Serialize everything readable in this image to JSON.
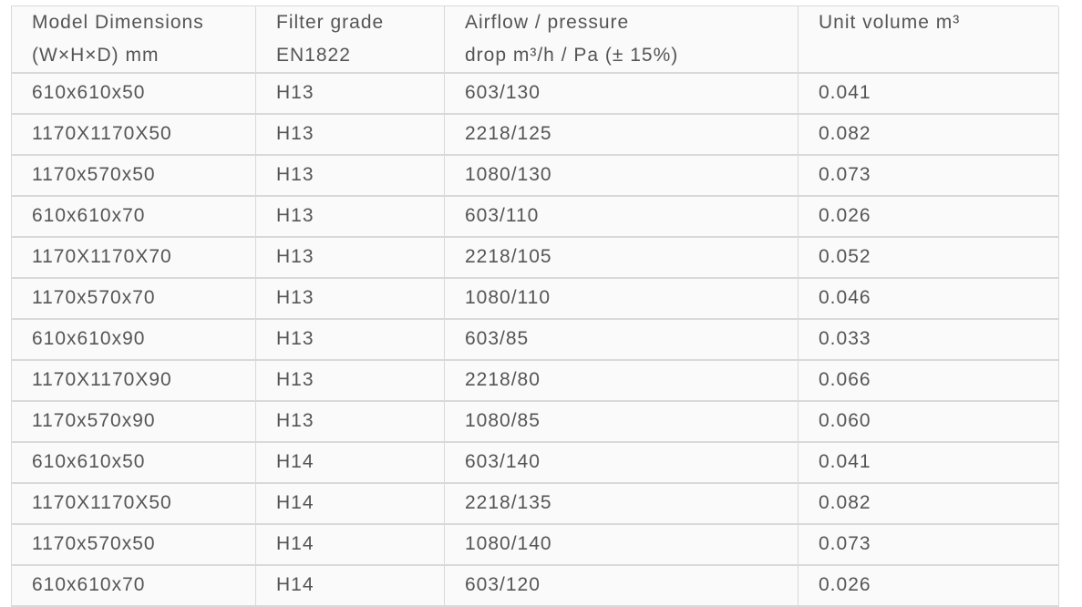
{
  "table": {
    "headers": [
      [
        "Model Dimensions",
        "(W×H×D) mm"
      ],
      [
        "Filter grade",
        "EN1822"
      ],
      [
        "Airflow / pressure",
        "drop m³/h / Pa (± 15%)"
      ],
      [
        "Unit volume m³"
      ]
    ],
    "rows": [
      [
        "610x610x50",
        "H13",
        "603/130",
        "0.041"
      ],
      [
        "1170X1170X50",
        "H13",
        "2218/125",
        "0.082"
      ],
      [
        "1170x570x50",
        "H13",
        "1080/130",
        "0.073"
      ],
      [
        "610x610x70",
        "H13",
        "603/110",
        "0.026"
      ],
      [
        "1170X1170X70",
        "H13",
        "2218/105",
        "0.052"
      ],
      [
        "1170x570x70",
        "H13",
        "1080/110",
        "0.046"
      ],
      [
        "610x610x90",
        "H13",
        "603/85",
        "0.033"
      ],
      [
        "1170X1170X90",
        "H13",
        "2218/80",
        "0.066"
      ],
      [
        "1170x570x90",
        "H13",
        "1080/85",
        "0.060"
      ],
      [
        "610x610x50",
        "H14",
        "603/140",
        "0.041"
      ],
      [
        "1170X1170X50",
        "H14",
        "2218/135",
        "0.082"
      ],
      [
        "1170x570x50",
        "H14",
        "1080/140",
        "0.073"
      ],
      [
        "610x610x70",
        "H14",
        "603/120",
        "0.026"
      ]
    ]
  }
}
